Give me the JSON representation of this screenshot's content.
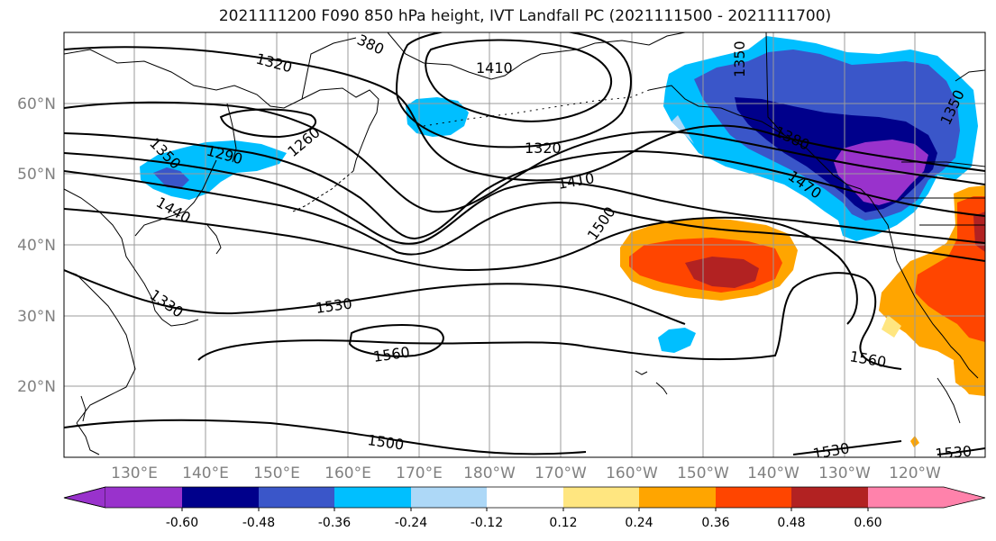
{
  "title": "2021111200 F090 850 hPa height, IVT Landfall PC (2021111500 - 2021111700)",
  "map": {
    "lon_labels": [
      "130°E",
      "140°E",
      "150°E",
      "160°E",
      "170°E",
      "180°W",
      "170°W",
      "160°W",
      "150°W",
      "140°W",
      "130°W",
      "120°W"
    ],
    "lat_labels": [
      "60°N",
      "50°N",
      "40°N",
      "30°N",
      "20°N"
    ],
    "grid": true,
    "contour_labels": [
      "1320",
      "1410",
      "1350",
      "1290",
      "1260",
      "1320",
      "1410",
      "1380",
      "1470",
      "1350",
      "1440",
      "1500",
      "1530",
      "1560",
      "1560",
      "1500",
      "1530",
      "1530",
      "1330",
      "380",
      "1350"
    ]
  },
  "colorbar": {
    "colors": [
      "#9932cc",
      "#00008b",
      "#3a56c9",
      "#00bfff",
      "#add8f7",
      "#ffffff",
      "#ffe680",
      "#ffa500",
      "#ff4500",
      "#b22222",
      "#ff82ab"
    ],
    "tick_labels": [
      "-0.60",
      "-0.48",
      "-0.36",
      "-0.24",
      "-0.12",
      "0.12",
      "0.24",
      "0.36",
      "0.48",
      "0.60"
    ]
  }
}
